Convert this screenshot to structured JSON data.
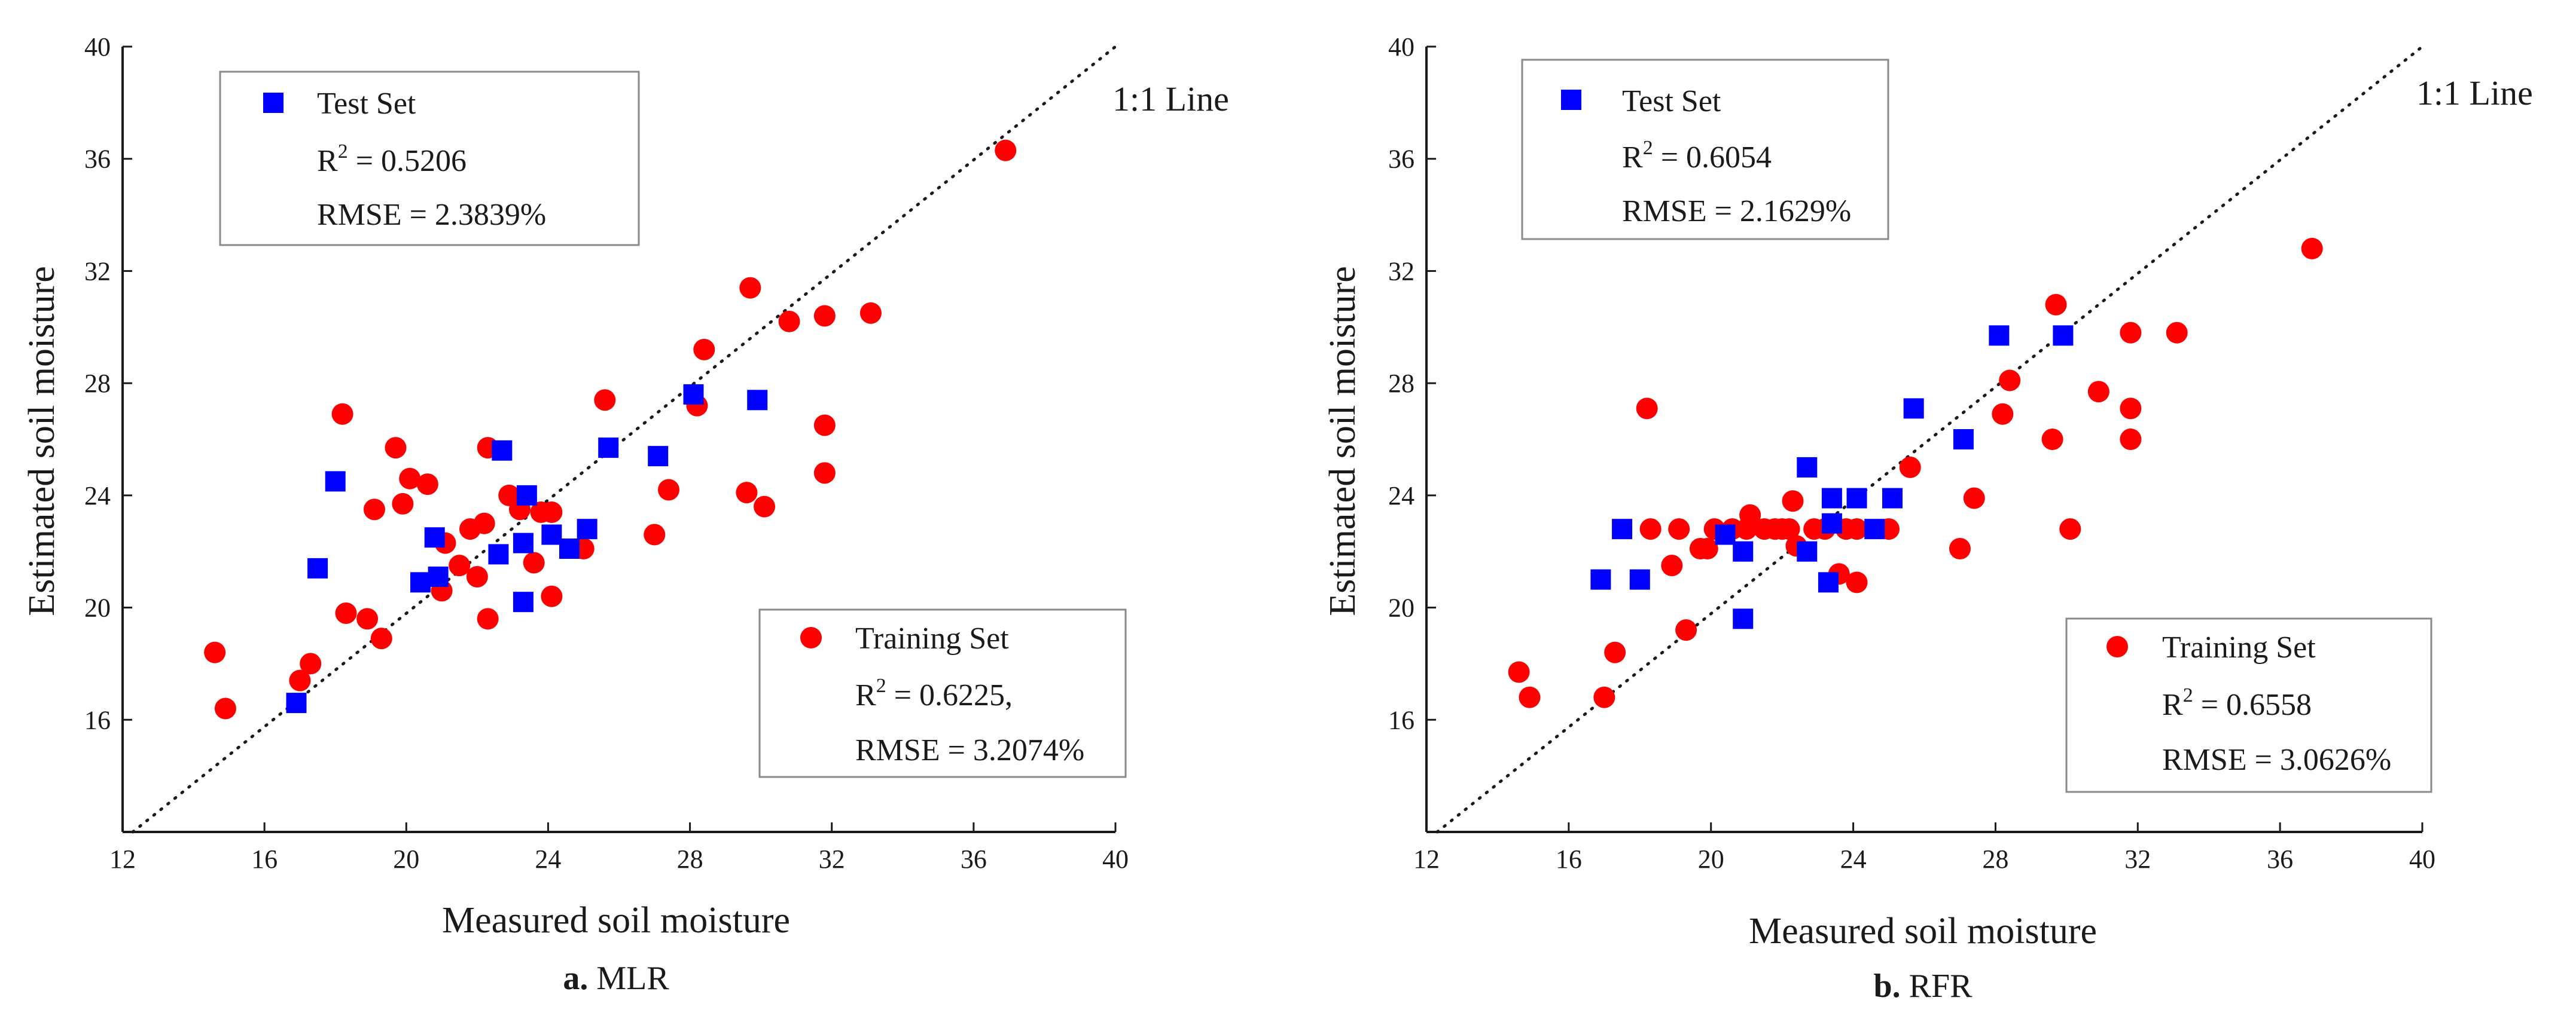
{
  "figure": {
    "captions": [
      {
        "letter": "a.",
        "method": "MLR"
      },
      {
        "letter": "b.",
        "method": "RFR"
      }
    ]
  },
  "chart_data": [
    {
      "type": "scatter",
      "xlabel": "Measured soil moisture",
      "ylabel": "Estimated soil moisture",
      "xlim": [
        12,
        40
      ],
      "ylim": [
        12,
        40
      ],
      "xticks": [
        12,
        16,
        20,
        24,
        28,
        32,
        36,
        40
      ],
      "yticks": [
        16,
        20,
        24,
        28,
        32,
        36,
        40
      ],
      "reference_line": {
        "label": "1:1 Line",
        "slope": 1,
        "intercept": 0,
        "style": "dotted"
      },
      "legend": {
        "test": {
          "name": "Test Set",
          "r2_label": "R",
          "r2_sup": "2",
          "r2_value": " = 0.5206",
          "rmse": "RMSE = 2.3839%"
        },
        "training": {
          "name": "Training Set",
          "r2_label": "R",
          "r2_sup": "2",
          "r2_value": " = 0.6225,",
          "rmse": "RMSE = 3.2074%"
        }
      },
      "colors": {
        "test": "#0000ff",
        "training": "#ff0000"
      },
      "series": [
        {
          "name": "Test Set",
          "marker": "square",
          "points": [
            [
              16.9,
              16.6
            ],
            [
              17.5,
              21.4
            ],
            [
              18.0,
              24.5
            ],
            [
              20.4,
              20.9
            ],
            [
              20.8,
              22.5
            ],
            [
              20.9,
              21.1
            ],
            [
              22.6,
              21.9
            ],
            [
              22.7,
              25.6
            ],
            [
              23.3,
              20.2
            ],
            [
              23.3,
              22.3
            ],
            [
              23.4,
              24.0
            ],
            [
              24.1,
              22.6
            ],
            [
              24.6,
              22.1
            ],
            [
              25.1,
              22.8
            ],
            [
              25.7,
              25.7
            ],
            [
              27.1,
              25.4
            ],
            [
              28.1,
              27.6
            ],
            [
              29.9,
              27.4
            ]
          ]
        },
        {
          "name": "Training Set",
          "marker": "circle",
          "points": [
            [
              14.6,
              18.4
            ],
            [
              14.9,
              16.4
            ],
            [
              17.0,
              17.4
            ],
            [
              17.3,
              18.0
            ],
            [
              18.2,
              26.9
            ],
            [
              18.3,
              19.8
            ],
            [
              18.9,
              19.6
            ],
            [
              19.1,
              23.5
            ],
            [
              19.3,
              18.9
            ],
            [
              19.7,
              25.7
            ],
            [
              19.9,
              23.7
            ],
            [
              20.1,
              24.6
            ],
            [
              20.6,
              24.4
            ],
            [
              21.0,
              20.6
            ],
            [
              21.1,
              22.3
            ],
            [
              21.5,
              21.5
            ],
            [
              21.8,
              22.8
            ],
            [
              22.0,
              21.1
            ],
            [
              22.2,
              23.0
            ],
            [
              22.3,
              25.7
            ],
            [
              22.3,
              19.6
            ],
            [
              22.9,
              24.0
            ],
            [
              23.2,
              23.5
            ],
            [
              23.6,
              21.6
            ],
            [
              23.8,
              23.4
            ],
            [
              24.1,
              23.4
            ],
            [
              24.1,
              20.4
            ],
            [
              25.0,
              22.1
            ],
            [
              25.6,
              27.4
            ],
            [
              27.0,
              22.6
            ],
            [
              27.4,
              24.2
            ],
            [
              28.2,
              27.2
            ],
            [
              28.4,
              29.2
            ],
            [
              29.6,
              24.1
            ],
            [
              29.7,
              31.4
            ],
            [
              30.1,
              23.6
            ],
            [
              30.8,
              30.2
            ],
            [
              31.8,
              30.4
            ],
            [
              31.8,
              26.5
            ],
            [
              31.8,
              24.8
            ],
            [
              33.1,
              30.5
            ],
            [
              36.9,
              36.3
            ]
          ]
        }
      ]
    },
    {
      "type": "scatter",
      "xlabel": "Measured soil moisture",
      "ylabel": "Estimated soil moisture",
      "xlim": [
        12,
        40
      ],
      "ylim": [
        12,
        40
      ],
      "xticks": [
        12,
        16,
        20,
        24,
        28,
        32,
        36,
        40
      ],
      "yticks": [
        16,
        20,
        24,
        28,
        32,
        36,
        40
      ],
      "reference_line": {
        "label": "1:1 Line",
        "slope": 1,
        "intercept": 0,
        "style": "dotted"
      },
      "legend": {
        "test": {
          "name": "Test Set",
          "r2_label": "R",
          "r2_sup": "2",
          "r2_value": " = 0.6054",
          "rmse": "RMSE = 2.1629%"
        },
        "training": {
          "name": "Training Set",
          "r2_label": "R",
          "r2_sup": "2",
          "r2_value": " = 0.6558",
          "rmse": "RMSE = 3.0626%"
        }
      },
      "colors": {
        "test": "#0000ff",
        "training": "#ff0000"
      },
      "series": [
        {
          "name": "Test Set",
          "marker": "square",
          "points": [
            [
              16.9,
              21.0
            ],
            [
              17.5,
              22.8
            ],
            [
              18.0,
              21.0
            ],
            [
              20.4,
              22.6
            ],
            [
              20.9,
              22.0
            ],
            [
              20.9,
              19.6
            ],
            [
              22.7,
              25.0
            ],
            [
              22.7,
              22.0
            ],
            [
              23.3,
              20.9
            ],
            [
              23.4,
              23.9
            ],
            [
              23.4,
              23.0
            ],
            [
              24.1,
              23.9
            ],
            [
              24.6,
              22.8
            ],
            [
              25.1,
              23.9
            ],
            [
              25.7,
              27.1
            ],
            [
              27.1,
              26.0
            ],
            [
              28.1,
              29.7
            ],
            [
              29.9,
              29.7
            ]
          ]
        },
        {
          "name": "Training Set",
          "marker": "circle",
          "points": [
            [
              14.6,
              17.7
            ],
            [
              14.9,
              16.8
            ],
            [
              17.0,
              16.8
            ],
            [
              17.3,
              18.4
            ],
            [
              18.2,
              27.1
            ],
            [
              18.3,
              22.8
            ],
            [
              18.9,
              21.5
            ],
            [
              19.1,
              22.8
            ],
            [
              19.3,
              19.2
            ],
            [
              19.7,
              22.1
            ],
            [
              19.9,
              22.1
            ],
            [
              20.1,
              22.8
            ],
            [
              20.6,
              22.8
            ],
            [
              21.0,
              22.8
            ],
            [
              21.1,
              23.3
            ],
            [
              21.5,
              22.8
            ],
            [
              21.8,
              22.8
            ],
            [
              22.0,
              22.8
            ],
            [
              22.2,
              22.8
            ],
            [
              22.3,
              23.8
            ],
            [
              22.4,
              22.2
            ],
            [
              22.9,
              22.8
            ],
            [
              23.2,
              22.8
            ],
            [
              23.6,
              21.2
            ],
            [
              23.8,
              22.8
            ],
            [
              24.1,
              20.9
            ],
            [
              24.1,
              22.8
            ],
            [
              25.0,
              22.8
            ],
            [
              25.6,
              25.0
            ],
            [
              27.0,
              22.1
            ],
            [
              27.4,
              23.9
            ],
            [
              28.2,
              26.9
            ],
            [
              28.4,
              28.1
            ],
            [
              29.6,
              26.0
            ],
            [
              29.7,
              30.8
            ],
            [
              30.1,
              22.8
            ],
            [
              30.9,
              27.7
            ],
            [
              31.8,
              29.8
            ],
            [
              31.8,
              27.1
            ],
            [
              31.8,
              26.0
            ],
            [
              33.1,
              29.8
            ],
            [
              36.9,
              32.8
            ]
          ]
        }
      ]
    }
  ]
}
